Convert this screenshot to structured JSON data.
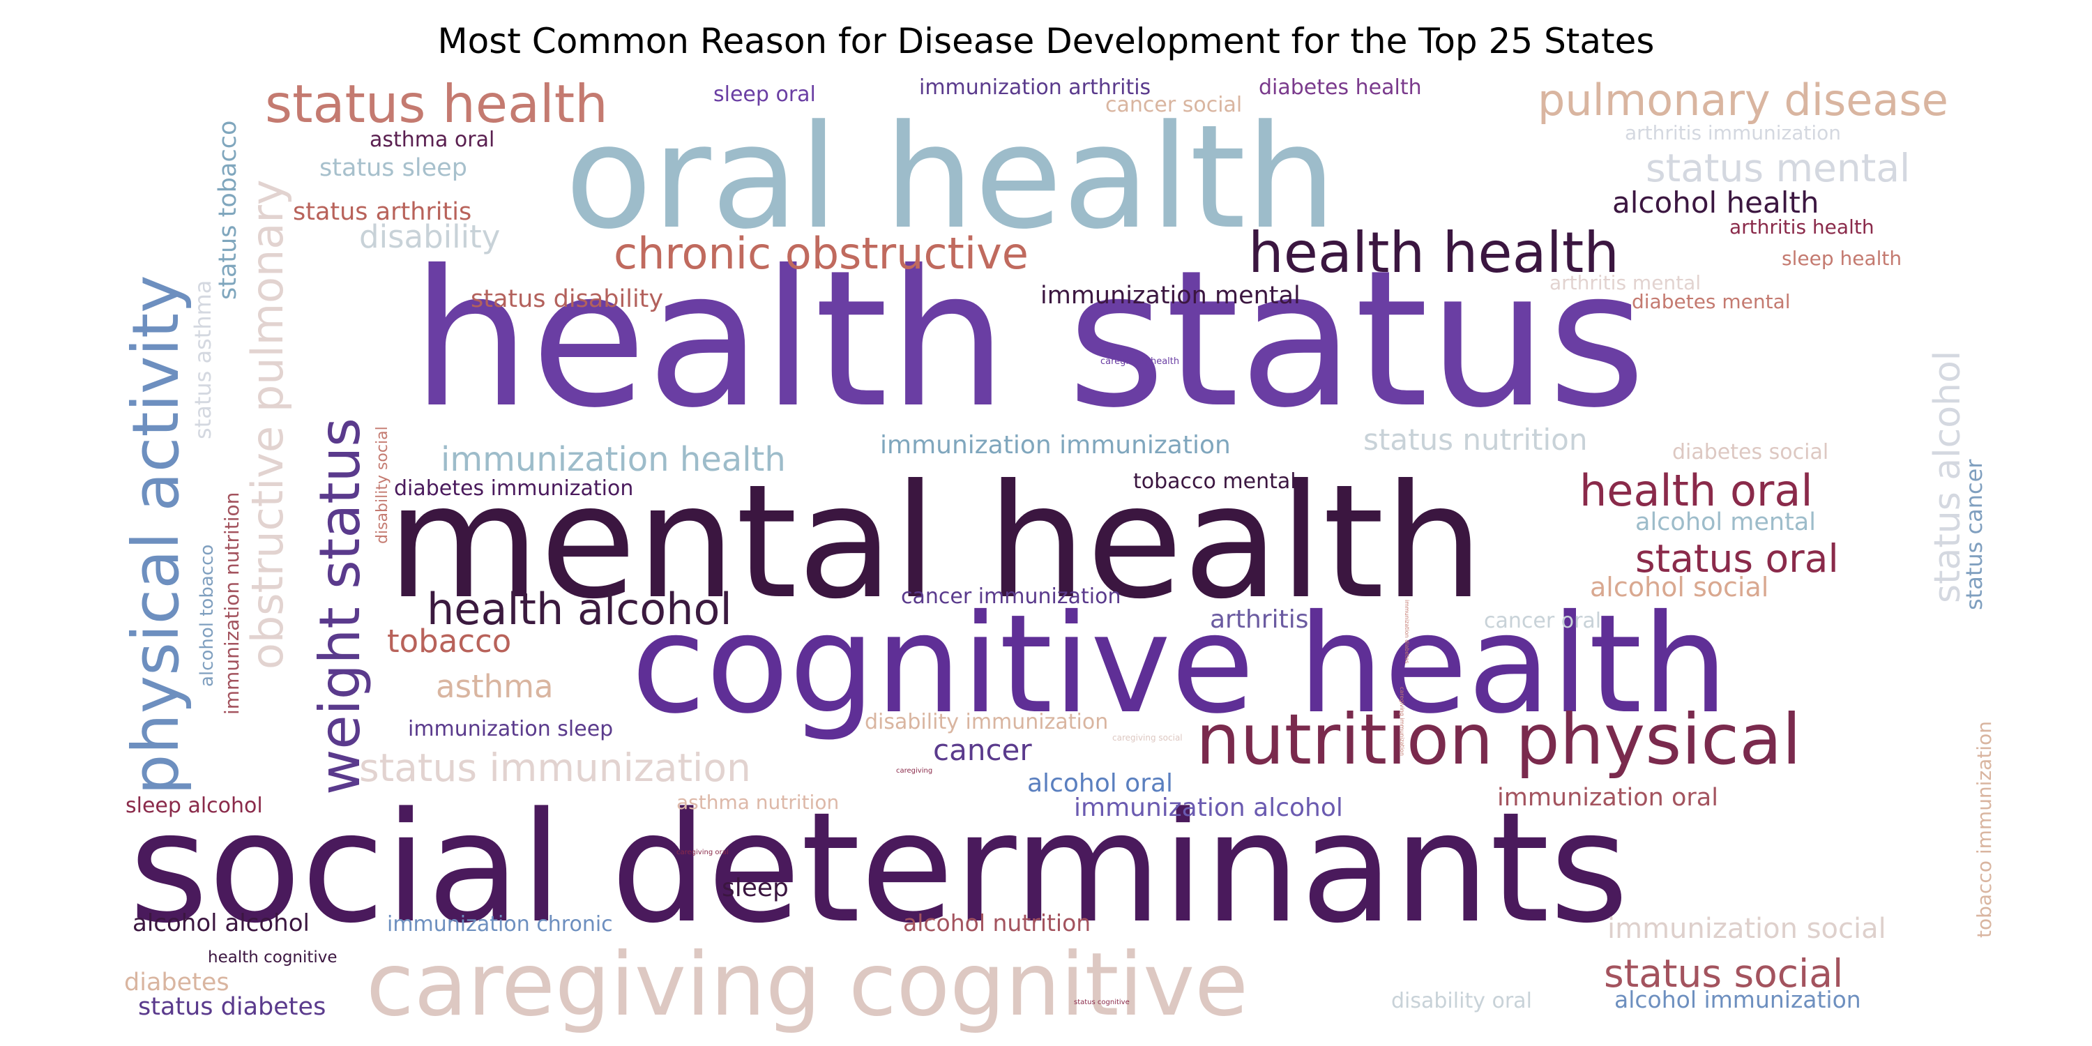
{
  "chart_data": {
    "type": "wordcloud",
    "title": "Most Common Reason for Disease Development for the Top 25 States",
    "words": [
      {
        "text": "health status",
        "color": "#6a3ea3"
      },
      {
        "text": "mental health",
        "color": "#3b1640"
      },
      {
        "text": "social determinants",
        "color": "#4a1a5c"
      },
      {
        "text": "cognitive health",
        "color": "#5f2f96"
      },
      {
        "text": "oral health",
        "color": "#9dbcca"
      },
      {
        "text": "caregiving cognitive",
        "color": "#ddc8c2"
      },
      {
        "text": "nutrition physical",
        "color": "#7a2a4d"
      },
      {
        "text": "physical activity",
        "color": "#6d8fbf"
      },
      {
        "text": "weight status",
        "color": "#5a3a8c"
      },
      {
        "text": "health health",
        "color": "#3b1640"
      },
      {
        "text": "status health",
        "color": "#c47a70"
      },
      {
        "text": "pulmonary disease",
        "color": "#d9b5a0"
      },
      {
        "text": "chronic obstructive",
        "color": "#c06a5e"
      },
      {
        "text": "obstructive pulmonary",
        "color": "#e2d3d0"
      },
      {
        "text": "health alcohol",
        "color": "#3b1a3f"
      },
      {
        "text": "health oral",
        "color": "#8a2a4a"
      },
      {
        "text": "status oral",
        "color": "#8a2a4a"
      },
      {
        "text": "status social",
        "color": "#a3535e"
      },
      {
        "text": "status immunization",
        "color": "#e2d3d0"
      },
      {
        "text": "immunization health",
        "color": "#9dbcca"
      },
      {
        "text": "status mental",
        "color": "#d4d8e0"
      },
      {
        "text": "status alcohol",
        "color": "#d4d8e0"
      },
      {
        "text": "status nutrition",
        "color": "#c8d2d8"
      },
      {
        "text": "immunization social",
        "color": "#ded0cc"
      },
      {
        "text": "immunization immunization",
        "color": "#7fa6bd"
      },
      {
        "text": "alcohol health",
        "color": "#3b1640"
      },
      {
        "text": "immunization mental",
        "color": "#3b1640"
      },
      {
        "text": "status disability",
        "color": "#b3615c"
      },
      {
        "text": "disability",
        "color": "#c8d2d8"
      },
      {
        "text": "status sleep",
        "color": "#a7c0cc"
      },
      {
        "text": "status arthritis",
        "color": "#b8625a"
      },
      {
        "text": "asthma oral",
        "color": "#5a2050"
      },
      {
        "text": "sleep oral",
        "color": "#6a3ea3"
      },
      {
        "text": "immunization arthritis",
        "color": "#5a3a8c"
      },
      {
        "text": "diabetes health",
        "color": "#7a3a8c"
      },
      {
        "text": "cancer social",
        "color": "#d9b5a0"
      },
      {
        "text": "arthritis immunization",
        "color": "#d4d8e0"
      },
      {
        "text": "arthritis health",
        "color": "#8a2a4a"
      },
      {
        "text": "sleep health",
        "color": "#c47a70"
      },
      {
        "text": "arthritis mental",
        "color": "#e2d3d0"
      },
      {
        "text": "diabetes mental",
        "color": "#c47a70"
      },
      {
        "text": "diabetes social",
        "color": "#ddc8c2"
      },
      {
        "text": "alcohol mental",
        "color": "#9dbcca"
      },
      {
        "text": "alcohol social",
        "color": "#d9a890"
      },
      {
        "text": "cancer oral",
        "color": "#c8d2d8"
      },
      {
        "text": "status cancer",
        "color": "#7f9fbf"
      },
      {
        "text": "tobacco immunization",
        "color": "#d9b5a0"
      },
      {
        "text": "immunization oral",
        "color": "#a3535e"
      },
      {
        "text": "alcohol immunization",
        "color": "#6d8fbf"
      },
      {
        "text": "disability oral",
        "color": "#c8d2d8"
      },
      {
        "text": "status tobacco",
        "color": "#7fa6bd"
      },
      {
        "text": "status asthma",
        "color": "#d4d8e0"
      },
      {
        "text": "alcohol tobacco",
        "color": "#7f9fbf"
      },
      {
        "text": "immunization nutrition",
        "color": "#a3535e"
      },
      {
        "text": "disability social",
        "color": "#c47a70"
      },
      {
        "text": "diabetes immunization",
        "color": "#4a1a5c"
      },
      {
        "text": "tobacco mental",
        "color": "#3b1640"
      },
      {
        "text": "cancer immunization",
        "color": "#5a3a8c"
      },
      {
        "text": "arthritis",
        "color": "#6a5aa0"
      },
      {
        "text": "tobacco",
        "color": "#b8625a"
      },
      {
        "text": "asthma",
        "color": "#d9b5a0"
      },
      {
        "text": "disability immunization",
        "color": "#d9b5a0"
      },
      {
        "text": "cancer",
        "color": "#5a3a8c"
      },
      {
        "text": "immunization sleep",
        "color": "#5a3a8c"
      },
      {
        "text": "alcohol oral",
        "color": "#5a7fbf"
      },
      {
        "text": "immunization alcohol",
        "color": "#6a5ab0"
      },
      {
        "text": "asthma nutrition",
        "color": "#ddb8a8"
      },
      {
        "text": "sleep alcohol",
        "color": "#8a2a4a"
      },
      {
        "text": "sleep",
        "color": "#3b1640"
      },
      {
        "text": "alcohol alcohol",
        "color": "#3b1640"
      },
      {
        "text": "immunization chronic",
        "color": "#6d8fbf"
      },
      {
        "text": "alcohol nutrition",
        "color": "#a3535e"
      },
      {
        "text": "health cognitive",
        "color": "#3b1640"
      },
      {
        "text": "diabetes",
        "color": "#d9b5a0"
      },
      {
        "text": "status diabetes",
        "color": "#5a3a8c"
      },
      {
        "text": "caregiving health",
        "color": "#6a3ea3"
      },
      {
        "text": "caregiving social",
        "color": "#ddc8c2"
      },
      {
        "text": "caregiving oral",
        "color": "#8a2a4a"
      },
      {
        "text": "caregiving",
        "color": "#8a2a4a"
      },
      {
        "text": "status cognitive",
        "color": "#8a2a4a"
      },
      {
        "text": "caregiving immunization",
        "color": "#c47a70"
      },
      {
        "text": "immunization diabetes",
        "color": "#c47a70"
      }
    ]
  }
}
